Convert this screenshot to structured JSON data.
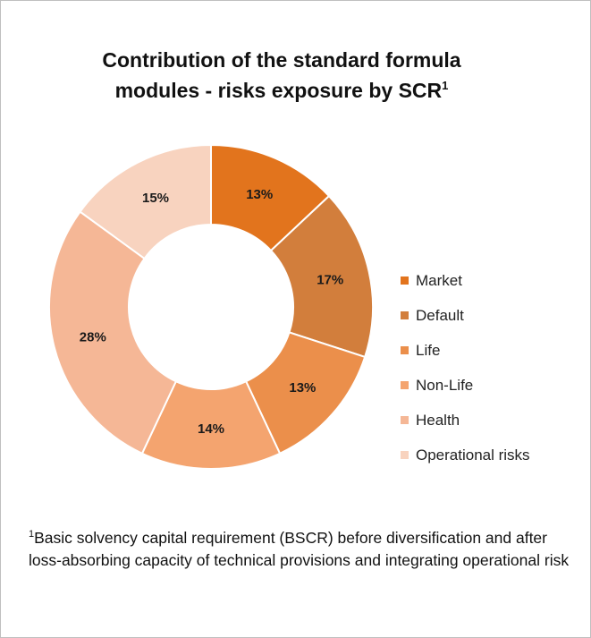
{
  "title": {
    "line1": "Contribution  of the standard  formula",
    "line2": "modules - risks exposure by SCR",
    "superscript": "1"
  },
  "chart_data": {
    "type": "pie",
    "categories": [
      "Market",
      "Default",
      "Life",
      "Non-Life",
      "Health",
      "Operational risks"
    ],
    "values": [
      13,
      17,
      13,
      14,
      28,
      15
    ],
    "labels": [
      "13%",
      "17%",
      "13%",
      "14%",
      "28%",
      "15%"
    ],
    "colors": [
      "#e2741d",
      "#d27e3c",
      "#eb8f4b",
      "#f4a46f",
      "#f5b796",
      "#f8d3bf"
    ],
    "donut": true,
    "legend_position": "right"
  },
  "footnote": {
    "marker": "1",
    "text": "Basic solvency capital requirement (BSCR) before  diversification and after loss-absorbing capacity of technical provisions and integrating operational risk"
  }
}
